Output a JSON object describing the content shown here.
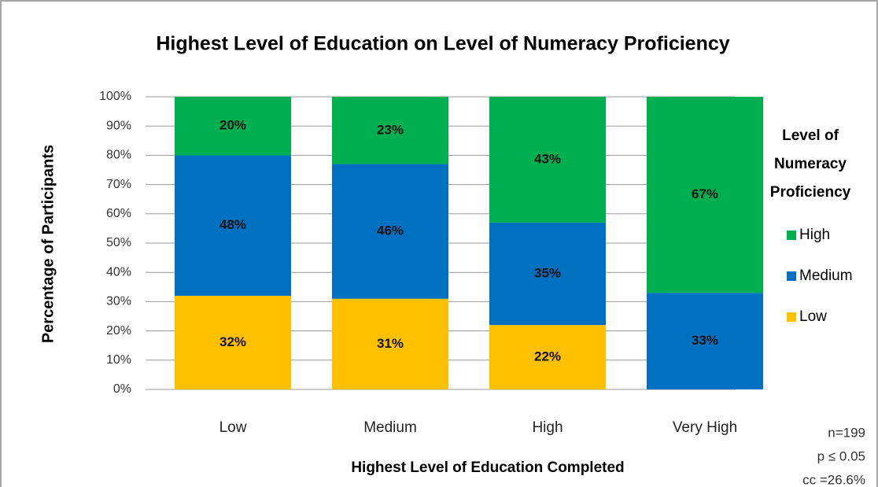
{
  "chart_data": {
    "type": "stacked_bar",
    "title": "Highest Level of Education on Level of Numeracy Proficiency",
    "x_label": "Highest Level of Education Completed",
    "y_label": "Percentage of Participants",
    "categories": [
      "Low",
      "Medium",
      "High",
      "Very High"
    ],
    "series": [
      {
        "name": "Low",
        "color": "#ffc000",
        "values": [
          32,
          31,
          22,
          0
        ],
        "value_labels": [
          "32%",
          "31%",
          "22%",
          null
        ]
      },
      {
        "name": "Medium",
        "color": "#0070c0",
        "values": [
          48,
          46,
          35,
          33
        ],
        "value_labels": [
          "48%",
          "46%",
          "35%",
          "33%"
        ]
      },
      {
        "name": "High",
        "color": "#00b050",
        "values": [
          20,
          23,
          43,
          67
        ],
        "value_labels": [
          "20%",
          "23%",
          "43%",
          "67%"
        ]
      }
    ],
    "ylim": [
      0,
      100
    ],
    "yticks": [
      {
        "value": 0,
        "label": "0%"
      },
      {
        "value": 10,
        "label": "10%"
      },
      {
        "value": 20,
        "label": "20%"
      },
      {
        "value": 30,
        "label": "30%"
      },
      {
        "value": 40,
        "label": "40%"
      },
      {
        "value": 50,
        "label": "50%"
      },
      {
        "value": 60,
        "label": "60%"
      },
      {
        "value": 70,
        "label": "70%"
      },
      {
        "value": 80,
        "label": "80%"
      },
      {
        "value": 90,
        "label": "90%"
      },
      {
        "value": 100,
        "label": "100%"
      }
    ],
    "grid": true,
    "legend_title": [
      "Level of",
      "Numeracy",
      "Proficiency"
    ],
    "legend_position": "right",
    "notes": [
      "n=199",
      "p ≤ 0.05",
      "cc =26.6%"
    ]
  }
}
